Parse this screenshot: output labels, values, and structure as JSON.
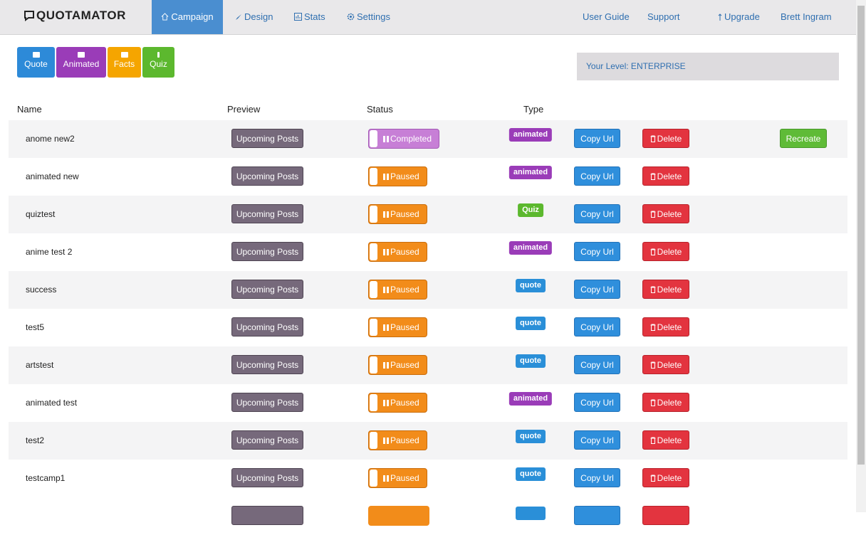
{
  "nav": {
    "logo": "QUOTAMATOR",
    "items": [
      "Campaign",
      "Design",
      "Stats",
      "Settings"
    ],
    "right": [
      "User Guide",
      "Support",
      "Upgrade",
      "Brett Ingram"
    ]
  },
  "create_buttons": [
    "Quote",
    "Animated",
    "Facts",
    "Quiz"
  ],
  "level": "Your Level: ENTERPRISE",
  "table": {
    "headers": [
      "Name",
      "Preview",
      "Status",
      "Type"
    ],
    "rows": [
      {
        "name": "anome new2",
        "preview": "Upcoming Posts",
        "status": "Completed",
        "type": "animated",
        "copy": "Copy Url",
        "delete": "Delete",
        "action": "Recreate"
      },
      {
        "name": "animated new",
        "preview": "Upcoming Posts",
        "status": "Paused",
        "type": "animated",
        "copy": "Copy Url",
        "delete": "Delete"
      },
      {
        "name": "quiztest",
        "preview": "Upcoming Posts",
        "status": "Paused",
        "type": "Quiz",
        "copy": "Copy Url",
        "delete": "Delete"
      },
      {
        "name": "anime test 2",
        "preview": "Upcoming Posts",
        "status": "Paused",
        "type": "animated",
        "copy": "Copy Url",
        "delete": "Delete"
      },
      {
        "name": "success",
        "preview": "Upcoming Posts",
        "status": "Paused",
        "type": "quote",
        "copy": "Copy Url",
        "delete": "Delete"
      },
      {
        "name": "test5",
        "preview": "Upcoming Posts",
        "status": "Paused",
        "type": "quote",
        "copy": "Copy Url",
        "delete": "Delete"
      },
      {
        "name": "artstest",
        "preview": "Upcoming Posts",
        "status": "Paused",
        "type": "quote",
        "copy": "Copy Url",
        "delete": "Delete"
      },
      {
        "name": "animated test",
        "preview": "Upcoming Posts",
        "status": "Paused",
        "type": "animated",
        "copy": "Copy Url",
        "delete": "Delete"
      },
      {
        "name": "test2",
        "preview": "Upcoming Posts",
        "status": "Paused",
        "type": "quote",
        "copy": "Copy Url",
        "delete": "Delete"
      },
      {
        "name": "testcamp1",
        "preview": "Upcoming Posts",
        "status": "Paused",
        "type": "quote",
        "copy": "Copy Url",
        "delete": "Delete"
      }
    ]
  }
}
